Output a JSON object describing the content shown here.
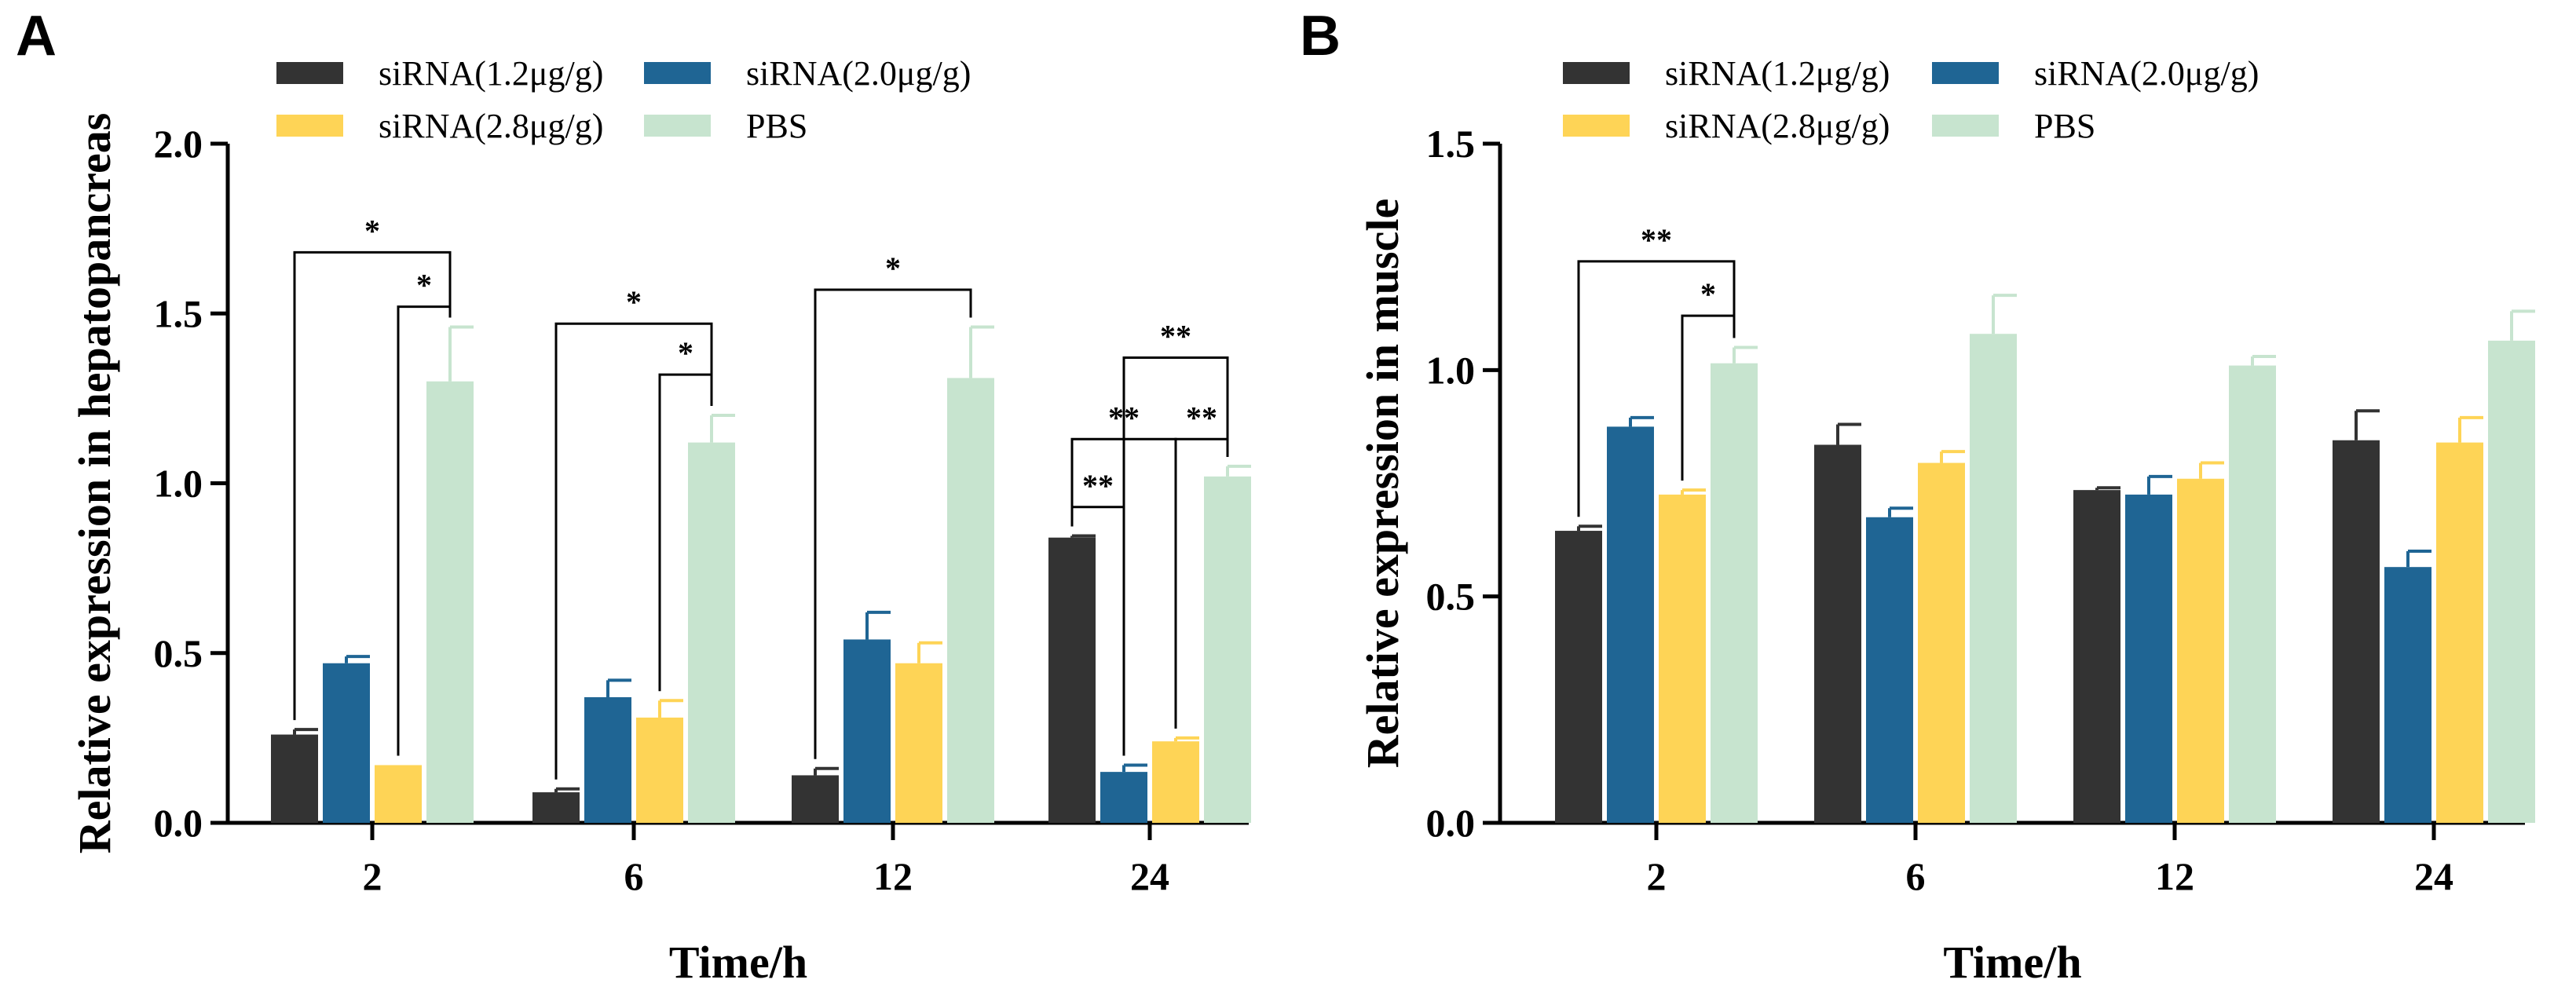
{
  "chart_data": [
    {
      "panel": "A",
      "type": "bar",
      "categories": [
        "2",
        "6",
        "12",
        "24"
      ],
      "xlabel": "Time/h",
      "ylabel": "Relative expression in hepatopancreas",
      "ylim": [
        0,
        2.0
      ],
      "ytick_values": [
        0,
        0.5,
        1.0,
        1.5,
        2.0
      ],
      "ytick_labels": [
        "0.0",
        "0.5",
        "1.0",
        "1.5",
        "2.0"
      ],
      "legend_placement": "top",
      "series": [
        {
          "name": "siRNA(1.2μg/g)",
          "color": "#333333",
          "values": [
            0.26,
            0.09,
            0.14,
            0.84
          ],
          "errors": [
            0.015,
            0.01,
            0.02,
            0.005
          ]
        },
        {
          "name": "siRNA(2.0μg/g)",
          "color": "#1f6594",
          "values": [
            0.47,
            0.37,
            0.54,
            0.15
          ],
          "errors": [
            0.02,
            0.05,
            0.08,
            0.02
          ]
        },
        {
          "name": "siRNA(2.8μg/g)",
          "color": "#fed456",
          "values": [
            0.17,
            0.31,
            0.47,
            0.24
          ],
          "errors": [
            0.0,
            0.05,
            0.06,
            0.01
          ]
        },
        {
          "name": "PBS",
          "color": "#c7e4cf",
          "values": [
            1.3,
            1.12,
            1.31,
            1.02
          ],
          "errors": [
            0.16,
            0.08,
            0.15,
            0.03
          ]
        }
      ],
      "significance": [
        {
          "label": "*",
          "group": 0,
          "from": 0,
          "to": 3,
          "level": 1.68
        },
        {
          "label": "*",
          "group": 0,
          "from": 2,
          "to": 3,
          "level": 1.52
        },
        {
          "label": "*",
          "group": 1,
          "from": 0,
          "to": 3,
          "level": 1.47
        },
        {
          "label": "*",
          "group": 1,
          "from": 2,
          "to": 3,
          "level": 1.32
        },
        {
          "label": "*",
          "group": 2,
          "from": 0,
          "to": 3,
          "level": 1.57
        },
        {
          "label": "**",
          "group": 3,
          "from": 1,
          "to": 3,
          "level": 1.37
        },
        {
          "label": "**",
          "group": 3,
          "from": 0,
          "to": 2,
          "level": 1.13
        },
        {
          "label": "**",
          "group": 3,
          "from": 2,
          "to": 3,
          "level": 1.13
        },
        {
          "label": "**",
          "group": 3,
          "from": 0,
          "to": 1,
          "level": 0.93
        }
      ]
    },
    {
      "panel": "B",
      "type": "bar",
      "categories": [
        "2",
        "6",
        "12",
        "24"
      ],
      "xlabel": "Time/h",
      "ylabel": "Relative expression in muscle",
      "ylim": [
        0,
        1.5
      ],
      "ytick_values": [
        0,
        0.5,
        1.0,
        1.5
      ],
      "ytick_labels": [
        "0.0",
        "0.5",
        "1.0",
        "1.5"
      ],
      "legend_placement": "top",
      "series": [
        {
          "name": "siRNA(1.2μg/g)",
          "color": "#333333",
          "values": [
            0.645,
            0.835,
            0.735,
            0.845
          ],
          "errors": [
            0.01,
            0.045,
            0.005,
            0.065
          ]
        },
        {
          "name": "siRNA(2.0μg/g)",
          "color": "#1f6594",
          "values": [
            0.875,
            0.675,
            0.725,
            0.565
          ],
          "errors": [
            0.02,
            0.02,
            0.04,
            0.035
          ]
        },
        {
          "name": "siRNA(2.8μg/g)",
          "color": "#fed456",
          "values": [
            0.725,
            0.795,
            0.76,
            0.84
          ],
          "errors": [
            0.01,
            0.025,
            0.035,
            0.055
          ]
        },
        {
          "name": "PBS",
          "color": "#c7e4cf",
          "values": [
            1.015,
            1.08,
            1.01,
            1.065
          ],
          "errors": [
            0.035,
            0.085,
            0.02,
            0.065
          ]
        }
      ],
      "significance": [
        {
          "label": "**",
          "group": 0,
          "from": 0,
          "to": 3,
          "level": 1.24
        },
        {
          "label": "*",
          "group": 0,
          "from": 2,
          "to": 3,
          "level": 1.12
        }
      ]
    }
  ]
}
